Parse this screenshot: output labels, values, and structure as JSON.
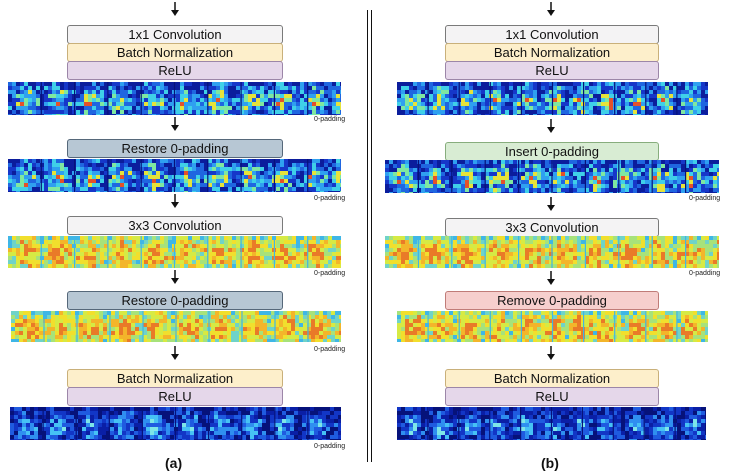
{
  "panel_a": {
    "label": "(a)",
    "steps": {
      "conv1x1": "1x1 Convolution",
      "bn1": "Batch Normalization",
      "relu1": "ReLU",
      "restore1": "Restore 0-padding",
      "conv3x3": "3x3 Convolution",
      "restore2": "Restore 0-padding",
      "bn2": "Batch Normalization",
      "relu2": "ReLU"
    },
    "map_notes": [
      "0-padding",
      "0-padding",
      "0-padding",
      "0-padding",
      "0-padding"
    ]
  },
  "panel_b": {
    "label": "(b)",
    "steps": {
      "conv1x1": "1x1 Convolution",
      "bn1": "Batch Normalization",
      "relu1": "ReLU",
      "insert": "Insert 0-padding",
      "conv3x3": "3x3 Convolution",
      "remove": "Remove 0-padding",
      "bn2": "Batch Normalization",
      "relu2": "ReLU"
    },
    "map_notes": [
      "0-padding",
      "0-padding"
    ]
  },
  "colors": {
    "restore": "#b7c7d4",
    "insert": "#d8ecd3",
    "remove": "#f6cfcd",
    "batch_norm": "#fdefcb",
    "relu": "#e5d7ea",
    "convolution": "#f4f3f4"
  }
}
